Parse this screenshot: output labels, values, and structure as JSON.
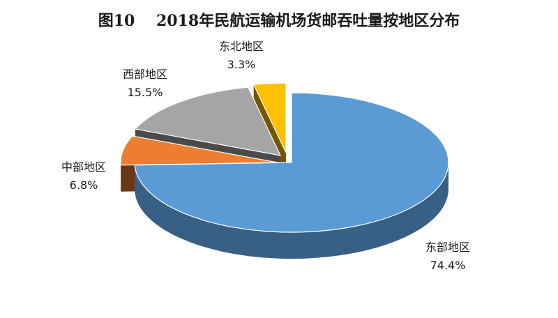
{
  "chart_data": {
    "type": "pie",
    "title": "图10    2018年民航运输机场货邮吞吐量按地区分布",
    "slices": [
      {
        "label": "东部地区",
        "value": 74.4,
        "value_text": "74.4%",
        "color": "#5b9bd5"
      },
      {
        "label": "中部地区",
        "value": 6.8,
        "value_text": "6.8%",
        "color": "#ed7d31"
      },
      {
        "label": "西部地区",
        "value": 15.5,
        "value_text": "15.5%",
        "color": "#a5a5a5"
      },
      {
        "label": "东北地区",
        "value": 3.3,
        "value_text": "3.3%",
        "color": "#ffc000"
      }
    ]
  }
}
